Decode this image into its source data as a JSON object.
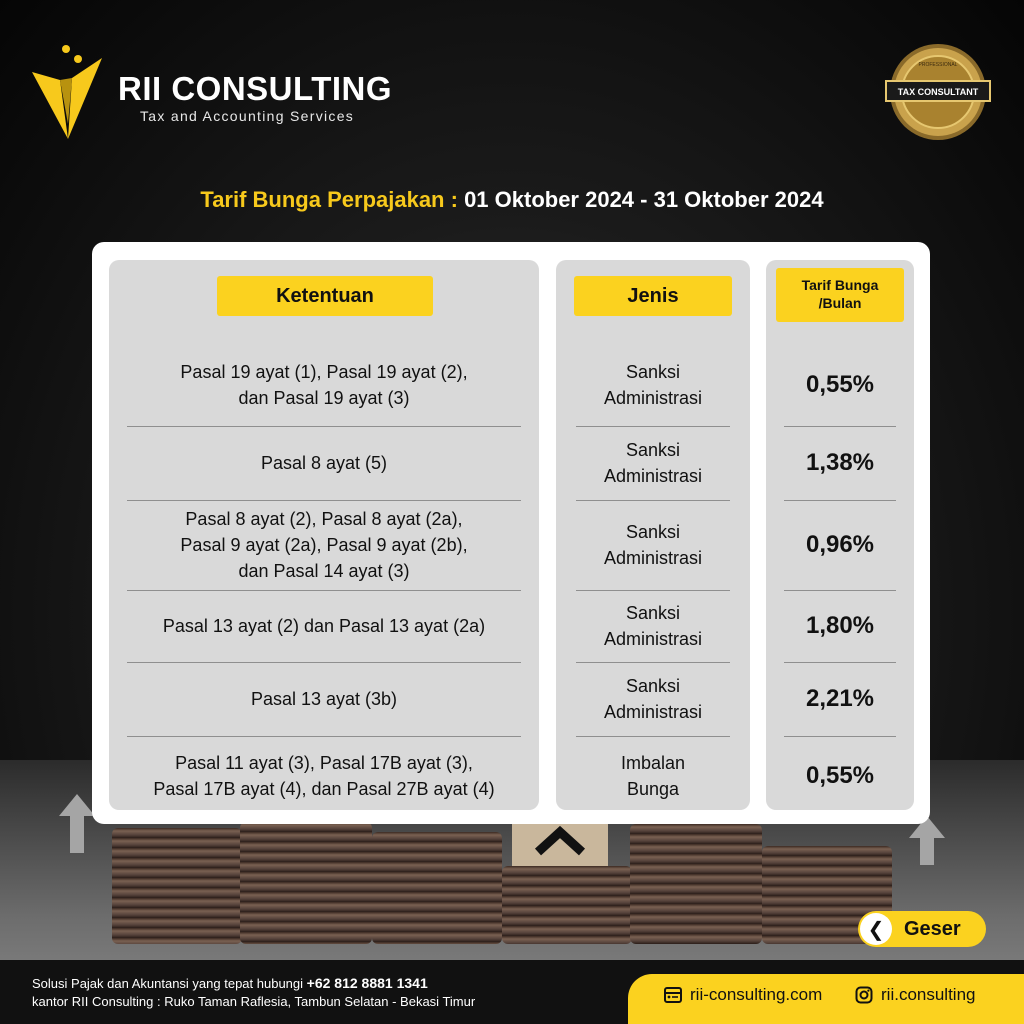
{
  "brand": {
    "name": "RII CONSULTING",
    "tagline": "Tax and Accounting Services",
    "badge_text": "TAX CONSULTANT",
    "badge_top_text": "PROFESSIONAL"
  },
  "title": {
    "prefix": "Tarif Bunga Perpajakan :",
    "period": "01 Oktober 2024 - 31 Oktober 2024"
  },
  "table": {
    "headers": {
      "ketentuan": "Ketentuan",
      "jenis": "Jenis",
      "tarif_line1": "Tarif Bunga",
      "tarif_line2": "/Bulan"
    },
    "rows": [
      {
        "ketentuan": [
          "Pasal 19 ayat (1), Pasal 19 ayat (2),",
          "dan Pasal 19 ayat (3)"
        ],
        "jenis": [
          "Sanksi",
          "Administrasi"
        ],
        "tarif": "0,55%"
      },
      {
        "ketentuan": [
          "Pasal 8 ayat (5)"
        ],
        "jenis": [
          "Sanksi",
          "Administrasi"
        ],
        "tarif": "1,38%"
      },
      {
        "ketentuan": [
          "Pasal 8 ayat (2), Pasal 8 ayat (2a),",
          "Pasal 9 ayat (2a), Pasal 9 ayat (2b),",
          "dan Pasal 14 ayat (3)"
        ],
        "jenis": [
          "Sanksi",
          "Administrasi"
        ],
        "tarif": "0,96%"
      },
      {
        "ketentuan": [
          "Pasal 13 ayat (2) dan Pasal 13 ayat (2a)"
        ],
        "jenis": [
          "Sanksi",
          "Administrasi"
        ],
        "tarif": "1,80%"
      },
      {
        "ketentuan": [
          "Pasal 13 ayat (3b)"
        ],
        "jenis": [
          "Sanksi",
          "Administrasi"
        ],
        "tarif": "2,21%"
      },
      {
        "ketentuan": [
          "Pasal 11 ayat (3), Pasal 17B ayat (3),",
          "Pasal 17B ayat (4), dan Pasal 27B ayat (4)"
        ],
        "jenis": [
          "Imbalan",
          "Bunga"
        ],
        "tarif": "0,55%"
      }
    ]
  },
  "nav": {
    "next_label": "Geser"
  },
  "footer": {
    "line1_prefix": "Solusi Pajak dan Akuntansi yang tepat hubungi",
    "phone": "+62 812 8881 1341",
    "line2": "kantor RII Consulting : Ruko Taman Raflesia, Tambun Selatan - Bekasi Timur",
    "website": "rii-consulting.com",
    "instagram": "rii.consulting"
  },
  "colors": {
    "accent": "#fbd21f",
    "panel": "#d9d9d9",
    "background": "#111111"
  }
}
